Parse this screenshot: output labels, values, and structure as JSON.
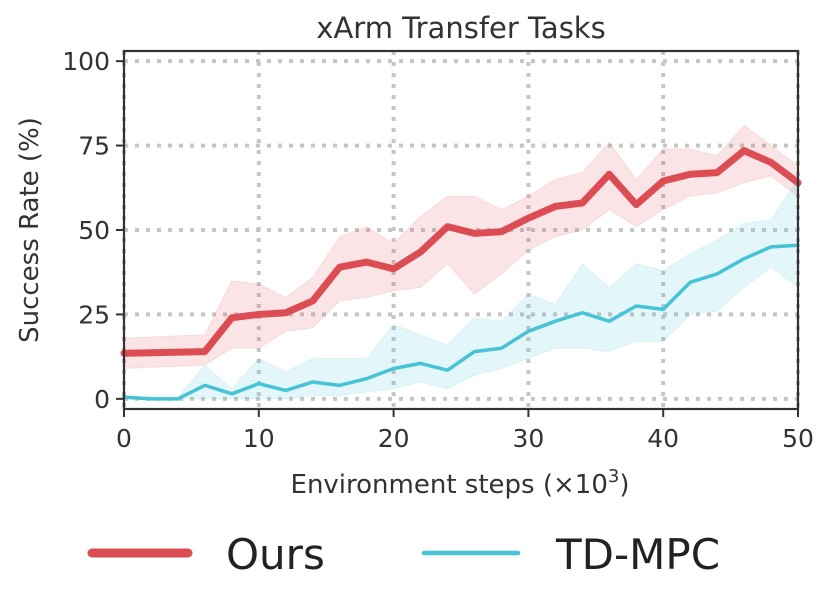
{
  "chart_data": {
    "type": "line",
    "title": "xArm Transfer Tasks",
    "xlabel": "Environment steps (×10",
    "xlabel_exp": "3",
    "xlabel_close": ")",
    "ylabel": "Success Rate (%)",
    "xlim": [
      0,
      50
    ],
    "ylim": [
      -3,
      103
    ],
    "xticks": [
      0,
      10,
      20,
      30,
      40,
      50
    ],
    "yticks": [
      0,
      25,
      50,
      75,
      100
    ],
    "grid": true,
    "legend_position": "bottom",
    "series": [
      {
        "name": "Ours",
        "color": "#dc4d53",
        "x": [
          0,
          6,
          8,
          10,
          12,
          14,
          16,
          18,
          20,
          22,
          24,
          26,
          28,
          30,
          32,
          34,
          36,
          38,
          40,
          42,
          44,
          46,
          48,
          50
        ],
        "y": [
          13.5,
          14,
          24,
          25,
          25.5,
          29,
          39,
          40.5,
          38.5,
          43.5,
          51,
          49,
          49.5,
          53.5,
          57,
          58,
          66.5,
          57.5,
          64.5,
          66.5,
          67,
          73.5,
          70,
          64
        ],
        "lower": [
          9,
          10,
          15,
          15,
          20,
          21,
          29,
          30,
          32,
          33,
          40,
          31,
          37,
          44,
          48,
          50,
          56,
          51,
          56,
          60,
          61,
          64,
          66,
          60
        ],
        "upper": [
          18,
          19,
          35,
          34,
          30,
          36,
          48,
          51,
          46,
          54,
          60,
          60,
          56,
          60,
          65,
          67,
          76,
          65,
          74,
          74,
          72,
          81,
          75,
          69
        ]
      },
      {
        "name": "TD-MPC",
        "color": "#46c3d4",
        "x": [
          0,
          2,
          4,
          6,
          8,
          10,
          12,
          14,
          16,
          18,
          20,
          22,
          24,
          26,
          28,
          30,
          32,
          34,
          36,
          38,
          40,
          42,
          44,
          46,
          48,
          50
        ],
        "y": [
          0.5,
          0,
          0,
          4,
          1.5,
          4.5,
          2.5,
          5,
          4,
          6,
          9,
          10.5,
          8.5,
          14,
          15,
          20,
          23,
          25.5,
          23,
          27.5,
          26.5,
          34.5,
          37,
          41.5,
          45,
          45.5
        ],
        "lower": [
          0,
          0,
          0,
          0,
          0,
          0,
          0,
          1,
          1,
          2,
          3,
          5,
          3,
          7,
          9,
          12,
          15,
          15,
          14,
          17,
          17,
          25,
          26,
          33,
          39,
          33
        ],
        "upper": [
          1,
          0.5,
          0.5,
          10,
          3,
          12,
          8,
          12,
          12,
          12,
          22,
          19,
          16,
          24,
          23,
          31,
          28,
          40,
          33,
          40,
          38,
          43,
          47,
          52,
          53,
          65
        ]
      }
    ]
  }
}
